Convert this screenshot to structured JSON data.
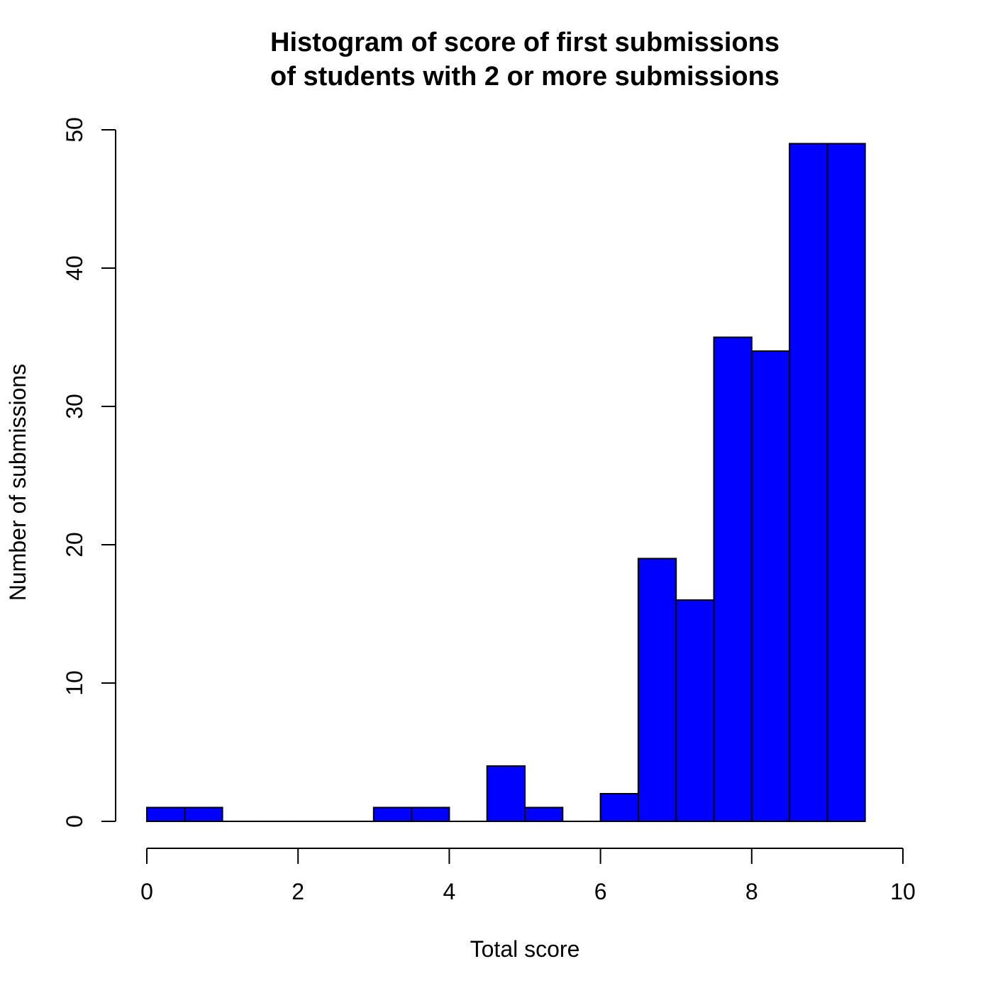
{
  "chart_data": {
    "type": "bar",
    "title_lines": [
      "Histogram of score of first submissions",
      "of students with 2 or more submissions"
    ],
    "xlabel": "Total score",
    "ylabel": "Number of submissions",
    "xlim": [
      0,
      10
    ],
    "ylim": [
      0,
      50
    ],
    "x_ticks": [
      0,
      2,
      4,
      6,
      8,
      10
    ],
    "x_tick_labels": [
      "0",
      "2",
      "4",
      "6",
      "8",
      "10"
    ],
    "y_ticks": [
      0,
      10,
      20,
      30,
      40,
      50
    ],
    "y_tick_labels": [
      "0",
      "10",
      "20",
      "30",
      "40",
      "50"
    ],
    "bin_width": 0.5,
    "bins": [
      {
        "start": 0.0,
        "end": 0.5,
        "count": 1
      },
      {
        "start": 0.5,
        "end": 1.0,
        "count": 1
      },
      {
        "start": 1.0,
        "end": 1.5,
        "count": 0
      },
      {
        "start": 1.5,
        "end": 2.0,
        "count": 0
      },
      {
        "start": 2.0,
        "end": 2.5,
        "count": 0
      },
      {
        "start": 2.5,
        "end": 3.0,
        "count": 0
      },
      {
        "start": 3.0,
        "end": 3.5,
        "count": 1
      },
      {
        "start": 3.5,
        "end": 4.0,
        "count": 1
      },
      {
        "start": 4.0,
        "end": 4.5,
        "count": 0
      },
      {
        "start": 4.5,
        "end": 5.0,
        "count": 4
      },
      {
        "start": 5.0,
        "end": 5.5,
        "count": 1
      },
      {
        "start": 5.5,
        "end": 6.0,
        "count": 0
      },
      {
        "start": 6.0,
        "end": 6.5,
        "count": 2
      },
      {
        "start": 6.5,
        "end": 7.0,
        "count": 19
      },
      {
        "start": 7.0,
        "end": 7.5,
        "count": 16
      },
      {
        "start": 7.5,
        "end": 8.0,
        "count": 35
      },
      {
        "start": 8.0,
        "end": 8.5,
        "count": 34
      },
      {
        "start": 8.5,
        "end": 9.0,
        "count": 49
      },
      {
        "start": 9.0,
        "end": 9.5,
        "count": 49
      }
    ],
    "grid": false,
    "legend": "none",
    "bar_color": "#0000ff",
    "bar_border_color": "#000000"
  }
}
